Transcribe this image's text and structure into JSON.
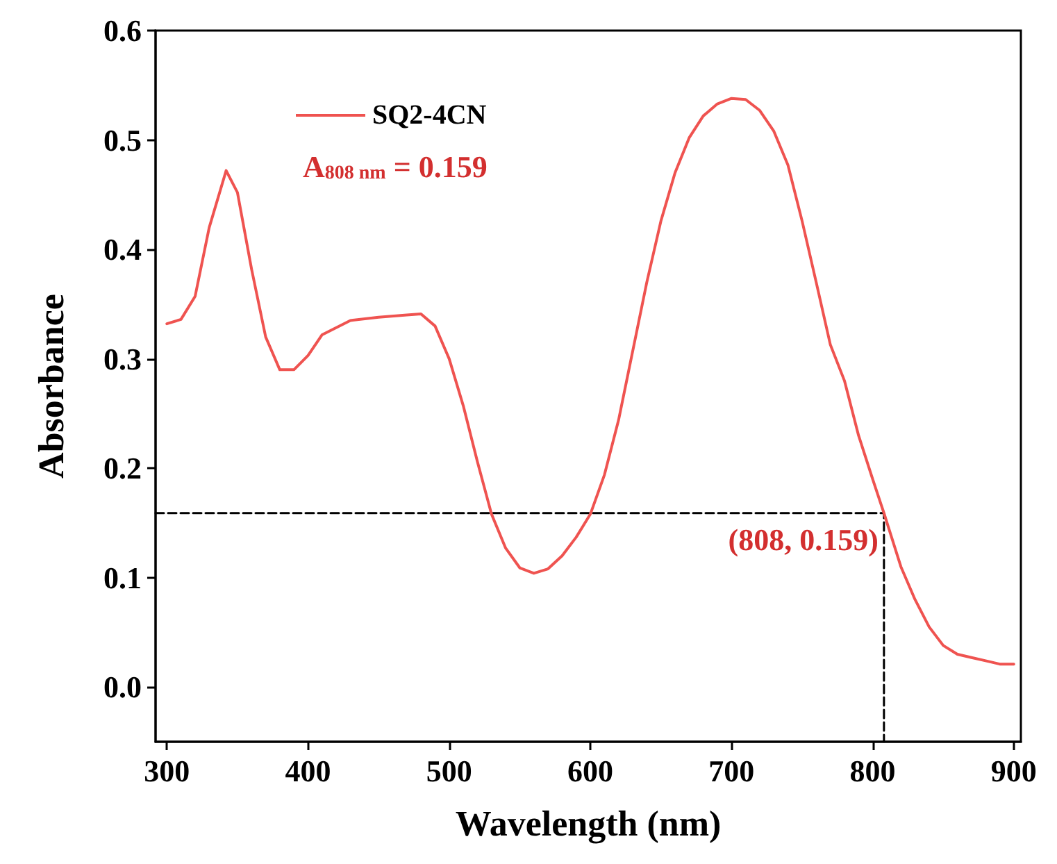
{
  "chart_data": {
    "type": "line",
    "xlabel": "Wavelength (nm)",
    "ylabel": "Absorbance",
    "xlim": [
      292,
      905
    ],
    "ylim": [
      -0.05,
      0.6
    ],
    "xticks": [
      300,
      400,
      500,
      600,
      700,
      800,
      900
    ],
    "yticks": [
      {
        "value": 0,
        "label": "0.0"
      },
      {
        "value": 0.1,
        "label": "0.1"
      },
      {
        "value": 0.2,
        "label": "0.2"
      },
      {
        "value": 0.3,
        "label": "0.3"
      },
      {
        "value": 0.4,
        "label": "0.4"
      },
      {
        "value": 0.5,
        "label": "0.5"
      },
      {
        "value": 0.6,
        "label": "0.6"
      }
    ],
    "legend": "top left",
    "grid": false,
    "marker": "none",
    "series": [
      {
        "name": "SQ2-4CN",
        "color": "#ef5350",
        "line_style": "solid",
        "x": [
          300,
          310,
          320,
          330,
          342,
          350,
          360,
          370,
          380,
          390,
          400,
          410,
          430,
          450,
          470,
          480,
          490,
          500,
          510,
          520,
          530,
          540,
          550,
          560,
          570,
          580,
          590,
          600,
          610,
          620,
          630,
          640,
          650,
          660,
          670,
          680,
          690,
          700,
          710,
          720,
          730,
          740,
          750,
          760,
          770,
          780,
          790,
          800,
          808,
          820,
          830,
          840,
          850,
          860,
          870,
          880,
          890,
          900
        ],
        "values": [
          0.332,
          0.336,
          0.357,
          0.42,
          0.472,
          0.452,
          0.382,
          0.32,
          0.29,
          0.29,
          0.303,
          0.322,
          0.335,
          0.338,
          0.34,
          0.341,
          0.33,
          0.3,
          0.257,
          0.206,
          0.158,
          0.127,
          0.109,
          0.104,
          0.108,
          0.12,
          0.137,
          0.158,
          0.194,
          0.244,
          0.307,
          0.37,
          0.426,
          0.47,
          0.502,
          0.522,
          0.533,
          0.538,
          0.537,
          0.527,
          0.508,
          0.477,
          0.426,
          0.37,
          0.313,
          0.28,
          0.23,
          0.19,
          0.159,
          0.11,
          0.08,
          0.055,
          0.038,
          0.03,
          0.027,
          0.024,
          0.021,
          0.021
        ]
      },
      {
        "type": "line",
        "color": "#000000",
        "line_style": "dashed",
        "x": [
          292,
          808,
          808
        ],
        "values": [
          0.159,
          0.159,
          -0.05
        ]
      }
    ],
    "annotations": [
      "A$_{808 nm}$ = 0.159",
      {
        "text": "(808, 0.159)",
        "x": 808,
        "y": 0.159
      }
    ]
  }
}
